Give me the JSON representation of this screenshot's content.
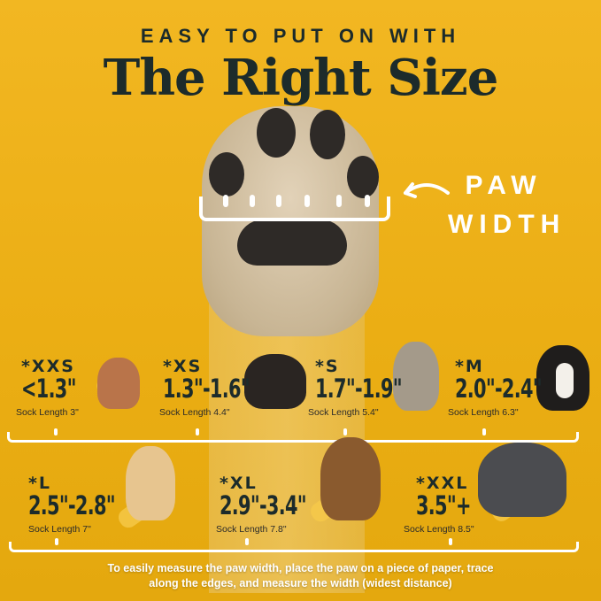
{
  "header": {
    "subtitle": "EASY TO PUT ON WITH",
    "title": "The Right Size"
  },
  "paw_label": {
    "line1": "PAW",
    "line2": "WIDTH"
  },
  "sizes": [
    {
      "size": "*XXS",
      "width": "<1.3\"",
      "sock": "Sock Length 3\"",
      "dog": "chihuahua",
      "color": "#b9744a"
    },
    {
      "size": "*XS",
      "width": "1.3\"-1.6\"",
      "sock": "Sock Length 4.4\"",
      "dog": "yorkshire-terrier",
      "color": "#2a2522"
    },
    {
      "size": "*S",
      "width": "1.7\"-1.9\"",
      "sock": "Sock Length 5.4\"",
      "dog": "french-bulldog",
      "color": "#a49a8a"
    },
    {
      "size": "*M",
      "width": "2.0\"-2.4\"",
      "sock": "Sock Length 6.3\"",
      "dog": "bernese-mountain-dog",
      "color": "#1f1d1c"
    },
    {
      "size": "*L",
      "width": "2.5\"-2.8\"",
      "sock": "Sock Length 7\"",
      "dog": "golden-retriever",
      "color": "#e7c58f"
    },
    {
      "size": "*XL",
      "width": "2.9\"-3.4\"",
      "sock": "Sock Length 7.8\"",
      "dog": "german-shepherd",
      "color": "#8a5a2e"
    },
    {
      "size": "*XXL",
      "width": "3.5\"+",
      "sock": "Sock Length 8.5\"",
      "dog": "great-dane",
      "color": "#4b4c50"
    }
  ],
  "footer": {
    "line1": "To easily measure the paw width, place the paw on a piece of paper, trace",
    "line2": "along the edges, and measure the width (widest distance)"
  }
}
